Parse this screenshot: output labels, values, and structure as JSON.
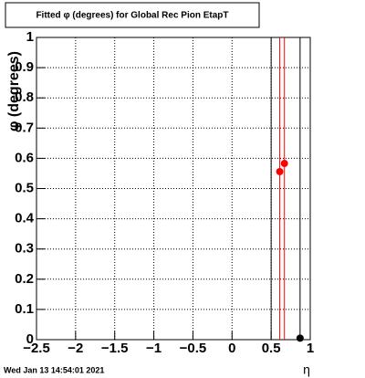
{
  "chart_data": {
    "type": "scatter",
    "title": "Fitted φ (degrees) for Global Rec Pion EtapT",
    "x_label": "η",
    "y_label": "φ (degrees)",
    "footer": "Wed Jan 13 14:54:01 2021",
    "xlim": [
      -2.5,
      1
    ],
    "ylim": [
      0,
      1
    ],
    "xticks": [
      {
        "value": -2.5,
        "label": "−2.5"
      },
      {
        "value": -2,
        "label": "−2"
      },
      {
        "value": -1.5,
        "label": "−1.5"
      },
      {
        "value": -1,
        "label": "−1"
      },
      {
        "value": -0.5,
        "label": "−0.5"
      },
      0,
      0.5,
      1
    ],
    "yticks": [
      0,
      0.1,
      0.2,
      0.3,
      0.4,
      0.5,
      0.6,
      0.7,
      0.8,
      0.9,
      1
    ],
    "grid": true,
    "series": [
      {
        "color": "#ff0000",
        "x": [
          0.61,
          0.67
        ],
        "values": [
          0.556,
          0.583
        ]
      },
      {
        "color": "#000000",
        "x": [
          0.87
        ],
        "values": [
          0.005
        ]
      }
    ],
    "vlines": [
      {
        "x": 0.5,
        "color": "#000000"
      }
    ]
  }
}
